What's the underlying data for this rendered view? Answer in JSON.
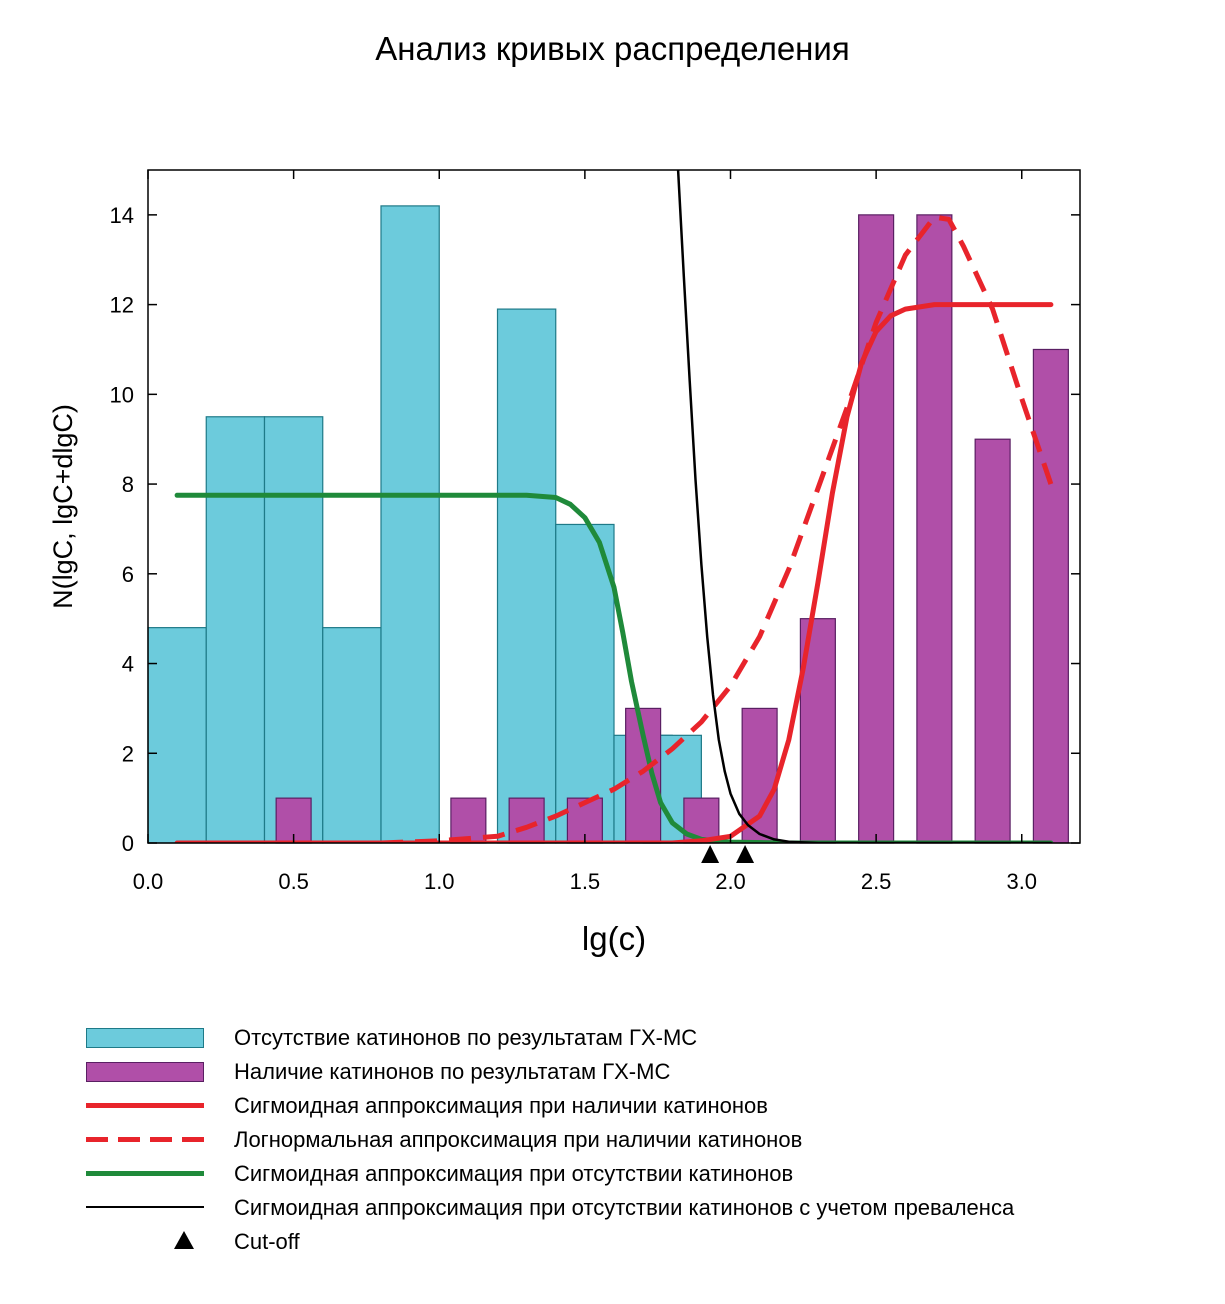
{
  "colors": {
    "absent_fill": "#6ccbdc",
    "absent_stroke": "#1e7a88",
    "present_fill": "#b04fa8",
    "present_stroke": "#5a1f63",
    "sigmoid_present": "#e8242b",
    "lognormal_present": "#e8242b",
    "sigmoid_absent": "#1f8a3a",
    "sigmoid_prevalence": "#000000",
    "cutoff_marker": "#000000"
  },
  "chart_data": {
    "type": "bar",
    "title": "Анализ кривых распределения",
    "xlabel": "lg(c)",
    "ylabel": "N(lgC, lgC+dlgC)",
    "xlim": [
      0.0,
      3.2
    ],
    "ylim": [
      0,
      15
    ],
    "x_ticks": [
      "0.0",
      "0.5",
      "1.0",
      "1.5",
      "2.0",
      "2.5",
      "3.0"
    ],
    "x_tick_values": [
      0.0,
      0.5,
      1.0,
      1.5,
      2.0,
      2.5,
      3.0
    ],
    "y_ticks": [
      "0",
      "2",
      "4",
      "6",
      "8",
      "10",
      "12",
      "14"
    ],
    "y_tick_values": [
      0,
      2,
      4,
      6,
      8,
      10,
      12,
      14
    ],
    "grid": false,
    "legend_position": "bottom",
    "bar_series": [
      {
        "name": "Отсутствие катинонов по результатам ГХ-МС",
        "color_key": "absent_fill",
        "bin_width": 0.2,
        "bins": [
          {
            "x_start": 0.0,
            "value": 4.8
          },
          {
            "x_start": 0.2,
            "value": 9.5
          },
          {
            "x_start": 0.4,
            "value": 9.5
          },
          {
            "x_start": 0.6,
            "value": 4.8
          },
          {
            "x_start": 0.8,
            "value": 14.2
          },
          {
            "x_start": 1.2,
            "value": 11.9
          },
          {
            "x_start": 1.4,
            "value": 7.1
          },
          {
            "x_start": 1.6,
            "value": 2.4
          },
          {
            "x_start": 1.7,
            "value": 2.4
          }
        ]
      },
      {
        "name": "Наличие катинонов по результатам ГХ-МС",
        "color_key": "present_fill",
        "bin_width": 0.12,
        "bins": [
          {
            "x_center": 0.5,
            "value": 1
          },
          {
            "x_center": 1.1,
            "value": 1
          },
          {
            "x_center": 1.3,
            "value": 1
          },
          {
            "x_center": 1.5,
            "value": 1
          },
          {
            "x_center": 1.7,
            "value": 3
          },
          {
            "x_center": 1.9,
            "value": 1
          },
          {
            "x_center": 2.1,
            "value": 3
          },
          {
            "x_center": 2.3,
            "value": 5
          },
          {
            "x_center": 2.5,
            "value": 14
          },
          {
            "x_center": 2.7,
            "value": 14
          },
          {
            "x_center": 2.9,
            "value": 9
          },
          {
            "x_center": 3.1,
            "value": 11
          }
        ]
      }
    ],
    "line_series": [
      {
        "name": "Сигмоидная аппроксимация при наличии катинонов",
        "color_key": "sigmoid_present",
        "style": "solid",
        "x": [
          0.1,
          0.5,
          1.0,
          1.4,
          1.6,
          1.8,
          1.9,
          2.0,
          2.1,
          2.15,
          2.2,
          2.25,
          2.3,
          2.35,
          2.4,
          2.45,
          2.5,
          2.55,
          2.6,
          2.7,
          2.8,
          3.0,
          3.1
        ],
        "y": [
          0,
          0,
          0,
          0,
          0,
          0,
          0.05,
          0.15,
          0.6,
          1.2,
          2.3,
          3.9,
          5.8,
          7.8,
          9.5,
          10.7,
          11.4,
          11.75,
          11.9,
          12.0,
          12.0,
          12.0,
          12.0
        ]
      },
      {
        "name": "Логнормальная аппроксимация при наличии катинонов",
        "color_key": "lognormal_present",
        "style": "dashed",
        "x": [
          0.1,
          0.8,
          1.0,
          1.2,
          1.3,
          1.4,
          1.5,
          1.6,
          1.7,
          1.8,
          1.9,
          2.0,
          2.1,
          2.2,
          2.3,
          2.4,
          2.5,
          2.6,
          2.7,
          2.75,
          2.8,
          2.9,
          3.0,
          3.1
        ],
        "y": [
          0,
          0,
          0.05,
          0.15,
          0.35,
          0.6,
          0.9,
          1.2,
          1.6,
          2.1,
          2.7,
          3.5,
          4.6,
          6.1,
          7.9,
          9.7,
          11.6,
          13.1,
          13.95,
          13.9,
          13.3,
          11.9,
          9.9,
          8.0
        ]
      },
      {
        "name": "Сигмоидная аппроксимация при отсутствии катинонов",
        "color_key": "sigmoid_absent",
        "style": "solid",
        "x": [
          0.1,
          0.5,
          1.0,
          1.3,
          1.4,
          1.45,
          1.5,
          1.55,
          1.6,
          1.63,
          1.66,
          1.7,
          1.73,
          1.76,
          1.8,
          1.85,
          1.9,
          2.0,
          2.2,
          2.6,
          3.1
        ],
        "y": [
          7.75,
          7.75,
          7.75,
          7.75,
          7.7,
          7.55,
          7.25,
          6.7,
          5.7,
          4.7,
          3.6,
          2.4,
          1.55,
          0.9,
          0.45,
          0.2,
          0.08,
          0.02,
          0,
          0,
          0
        ]
      },
      {
        "name": "Сигмоидная аппроксимация при отсутствии катинонов с учетом преваленса",
        "color_key": "sigmoid_prevalence",
        "style": "solid-thin",
        "x": [
          1.82,
          1.84,
          1.86,
          1.88,
          1.9,
          1.92,
          1.94,
          1.96,
          1.98,
          2.0,
          2.03,
          2.06,
          2.1,
          2.15,
          2.2,
          2.3,
          2.5,
          3.1
        ],
        "y": [
          15.0,
          12.6,
          10.3,
          8.1,
          6.2,
          4.6,
          3.3,
          2.3,
          1.6,
          1.1,
          0.65,
          0.4,
          0.2,
          0.08,
          0.03,
          0.0,
          0,
          0
        ]
      }
    ],
    "cutoff": {
      "name": "Cut-off",
      "x_values": [
        1.93,
        2.05
      ]
    }
  },
  "legend": [
    {
      "kind": "box",
      "color_key": "absent_fill",
      "label": "Отсутствие катинонов по результатам ГХ-МС"
    },
    {
      "kind": "box",
      "color_key": "present_fill",
      "label": "Наличие катинонов по результатам ГХ-МС"
    },
    {
      "kind": "line",
      "color_key": "sigmoid_present",
      "label": "Сигмоидная аппроксимация при наличии катинонов"
    },
    {
      "kind": "dash",
      "color_key": "lognormal_present",
      "label": "Логнормальная аппроксимация при наличии катинонов"
    },
    {
      "kind": "line",
      "color_key": "sigmoid_absent",
      "label": "Сигмоидная аппроксимация при отсутствии катинонов"
    },
    {
      "kind": "thin",
      "color_key": "sigmoid_prevalence",
      "label": "Сигмоидная аппроксимация при отсутствии катинонов с учетом преваленса"
    },
    {
      "kind": "triangle",
      "color_key": "cutoff_marker",
      "label": "Cut-off"
    }
  ]
}
